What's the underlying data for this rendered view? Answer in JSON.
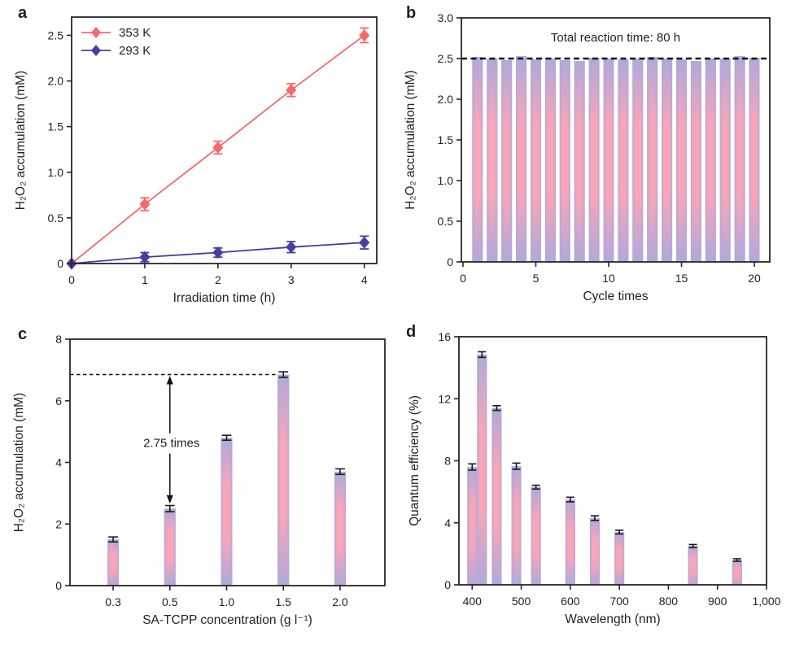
{
  "figure": {
    "background": "#ffffff",
    "text_color": "#231f20",
    "axis_color": "#262626"
  },
  "colors": {
    "series_red": "#f7696d",
    "series_navy": "#453f9e",
    "bar_edge": "#b0a9da",
    "bar_mid": "#f8a5b9",
    "dashed_line": "#111111",
    "error_bar": "#1a1a1a"
  },
  "chart_data": [
    {
      "panel": "a",
      "type": "line",
      "xlabel": "Irradiation time (h)",
      "ylabel": "H₂O₂ accumulation (mM)",
      "xlim": [
        0,
        4.17
      ],
      "ylim": [
        0,
        2.7
      ],
      "xticks": {
        "values": [
          0,
          1,
          2,
          3,
          4
        ],
        "labels": [
          "0",
          "1",
          "2",
          "3",
          "4"
        ]
      },
      "yticks": {
        "values": [
          0,
          0.5,
          1.0,
          1.5,
          2.0,
          2.5
        ],
        "labels": [
          "0",
          "0.5",
          "1.0",
          "1.5",
          "2.0",
          "2.5"
        ]
      },
      "legend": {
        "position": "top-left"
      },
      "series": [
        {
          "name": "353 K",
          "color": "#f7696d",
          "marker": "diamond",
          "x": [
            0,
            1,
            2,
            3,
            4
          ],
          "y": [
            0,
            0.65,
            1.27,
            1.9,
            2.5
          ],
          "yerr": [
            0,
            0.07,
            0.07,
            0.07,
            0.08
          ]
        },
        {
          "name": "293 K",
          "color": "#453f9e",
          "marker": "diamond",
          "x": [
            0,
            1,
            2,
            3,
            4
          ],
          "y": [
            0,
            0.07,
            0.12,
            0.18,
            0.23
          ],
          "yerr": [
            0,
            0.05,
            0.05,
            0.06,
            0.07
          ]
        }
      ]
    },
    {
      "panel": "b",
      "type": "bar",
      "xlabel": "Cycle times",
      "ylabel": "H₂O₂ accumulation (mM)",
      "xlim": [
        -0.11,
        21.06
      ],
      "ylim": [
        0,
        3.0
      ],
      "xticks": {
        "values": [
          0,
          5,
          10,
          15,
          20
        ],
        "labels": [
          "0",
          "5",
          "10",
          "15",
          "20"
        ]
      },
      "yticks": {
        "values": [
          0,
          0.5,
          1.0,
          1.5,
          2.0,
          2.5,
          3.0
        ],
        "labels": [
          "0",
          "0.5",
          "1.0",
          "1.5",
          "2.0",
          "2.5",
          "3.0"
        ]
      },
      "x": [
        1,
        2,
        3,
        4,
        5,
        6,
        7,
        8,
        9,
        10,
        11,
        12,
        13,
        14,
        15,
        16,
        17,
        18,
        19,
        20
      ],
      "values": [
        2.52,
        2.5,
        2.48,
        2.53,
        2.49,
        2.5,
        2.48,
        2.47,
        2.51,
        2.5,
        2.49,
        2.5,
        2.52,
        2.5,
        2.49,
        2.47,
        2.5,
        2.5,
        2.53,
        2.51
      ],
      "dashed_line": {
        "y": 2.5,
        "extent": "full-width"
      },
      "annotation": {
        "text": "Total reaction time: 80 h",
        "position": "top-center"
      }
    },
    {
      "panel": "c",
      "type": "bar",
      "xlabel": "SA-TCPP concentration (g l⁻¹)",
      "ylabel": "H₂O₂ accumulation (mM)",
      "categories": [
        "0.3",
        "0.5",
        "1.0",
        "1.5",
        "2.0"
      ],
      "values": [
        1.5,
        2.5,
        4.8,
        6.85,
        3.7
      ],
      "errors": [
        0.08,
        0.1,
        0.08,
        0.09,
        0.09
      ],
      "ylim": [
        0,
        8
      ],
      "yticks": {
        "values": [
          0,
          2,
          4,
          6,
          8
        ],
        "labels": [
          "0",
          "2",
          "4",
          "6",
          "8"
        ]
      },
      "dashed_line": {
        "y": 6.85,
        "to_category": "1.5"
      },
      "annotation": {
        "text": "2.75 times",
        "at_category": "0.5",
        "arrow_from_y": 2.62,
        "arrow_to_y": 6.85
      }
    },
    {
      "panel": "d",
      "type": "bar",
      "xlabel": "Wavelength (nm)",
      "ylabel": "Quantum efficiency (%)",
      "xlim": [
        373,
        1000
      ],
      "ylim": [
        0,
        16
      ],
      "xticks": {
        "values": [
          400,
          500,
          600,
          700,
          800,
          900,
          1000
        ],
        "labels": [
          "400",
          "500",
          "600",
          "700",
          "800",
          "900",
          "1,000"
        ]
      },
      "yticks": {
        "values": [
          0,
          4,
          8,
          12,
          16
        ],
        "labels": [
          "0",
          "4",
          "8",
          "12",
          "16"
        ]
      },
      "x": [
        400,
        420,
        450,
        490,
        530,
        600,
        650,
        700,
        850,
        940
      ],
      "values": [
        7.6,
        14.85,
        11.4,
        7.65,
        6.3,
        5.5,
        4.3,
        3.4,
        2.5,
        1.6
      ],
      "errors": [
        0.2,
        0.18,
        0.15,
        0.2,
        0.12,
        0.15,
        0.15,
        0.12,
        0.1,
        0.08
      ]
    }
  ]
}
